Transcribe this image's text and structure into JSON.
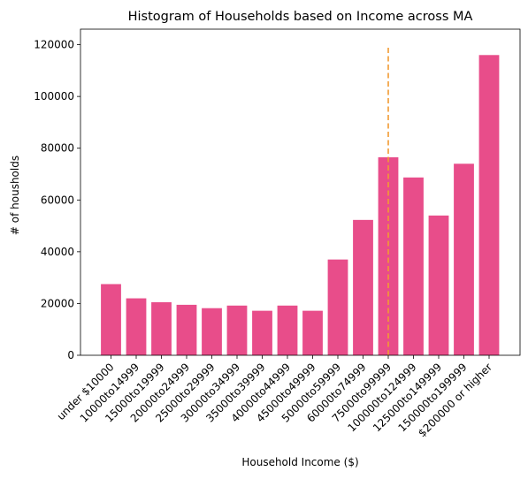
{
  "chart_data": {
    "type": "bar",
    "title": "Histogram of Households based on Income across MA",
    "xlabel": "Household Income ($)",
    "ylabel": "# of housholds",
    "ylim": [
      0,
      126000
    ],
    "yticks": [
      0,
      20000,
      40000,
      60000,
      80000,
      100000,
      120000
    ],
    "ytick_labels": [
      "0",
      "20000",
      "40000",
      "60000",
      "80000",
      "100000",
      "120000"
    ],
    "categories": [
      "under $10000",
      "$10000 to $14999",
      "$15000 to $19999",
      "$20000 to $24999",
      "$25000 to $29999",
      "$30000 to $34999",
      "$35000 to $39999",
      "$40000 to $44999",
      "$45000 to $49999",
      "$50000 to $59999",
      "$60000 to $74999",
      "$75000 to $99999",
      "$100000 to $124999",
      "$125000 to $149999",
      "$150000 to $199999",
      "$200000 or higher"
    ],
    "tick_labels": [
      "under $10000",
      "10000to14999",
      "15000to19999",
      "20000to24999",
      "25000to29999",
      "30000to34999",
      "35000to39999",
      "40000to44999",
      "45000to49999",
      "50000to59999",
      "60000to74999",
      "75000to99999",
      "100000to124999",
      "125000to149999",
      "150000to199999",
      "$200000 or higher"
    ],
    "values": [
      27500,
      22000,
      20500,
      19500,
      18200,
      19200,
      17200,
      19200,
      17200,
      37000,
      52300,
      76500,
      68700,
      54000,
      74000,
      116000
    ],
    "grid": false,
    "bar_color": "#e84d8a",
    "reference_line": {
      "category_index": 11,
      "y_from": 0,
      "y_to": 119000,
      "style": "dashed",
      "color": "#f29a32"
    }
  }
}
